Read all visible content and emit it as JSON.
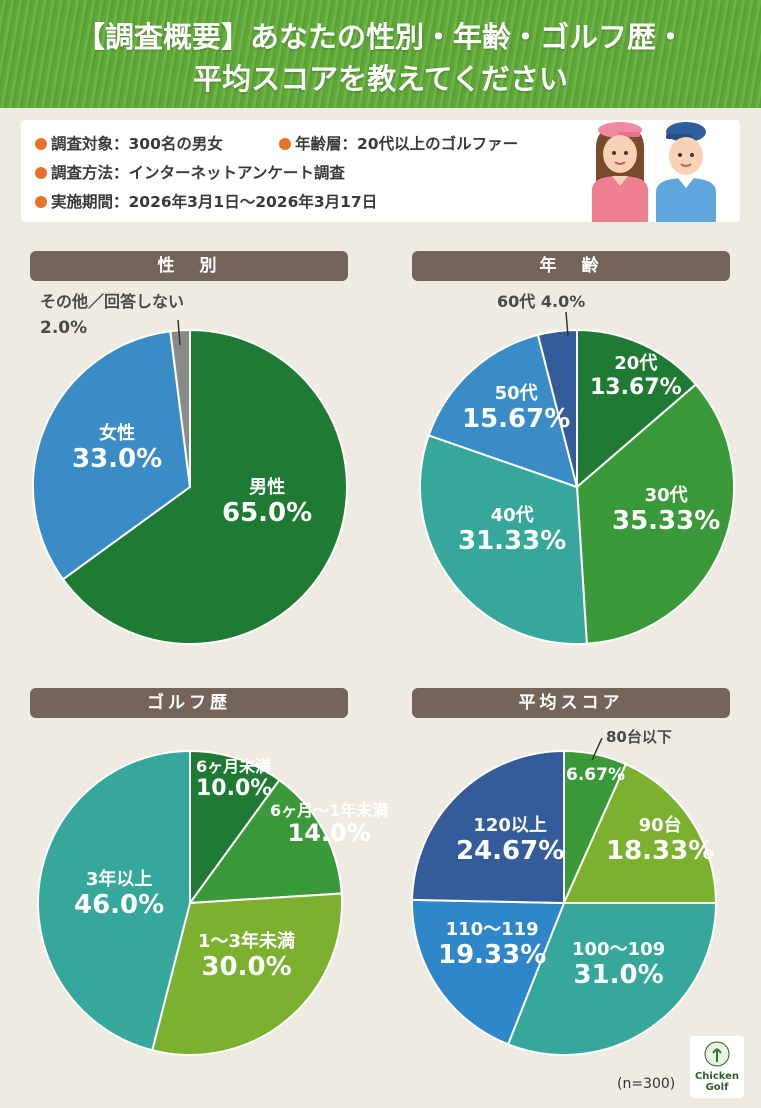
{
  "header": {
    "line1": "【調査概要】あなたの性別・年齢・ゴルフ歴・",
    "line2": "平均スコアを教えてください"
  },
  "survey": {
    "target": "調査対象：300名の男女",
    "age_range": "年齢層：20代以上のゴルファー",
    "method": "調査方法：インターネットアンケート調査",
    "period": "実施期間：2026年3月1日～2026年3月17日"
  },
  "sections": {
    "gender": "性　別",
    "age": "年　齢",
    "golf_history": "ゴルフ歴",
    "avg_score": "平均スコア"
  },
  "chart_data": [
    {
      "type": "pie",
      "title": "性　別",
      "slices": [
        {
          "label": "男性",
          "value": 65.0,
          "display": "65.0%",
          "color": "#1f7a34"
        },
        {
          "label": "女性",
          "value": 33.0,
          "display": "33.0%",
          "color": "#3a8cc6"
        },
        {
          "label": "その他／回答しない",
          "value": 2.0,
          "display": "2.0%",
          "color": "#8a8a8a"
        }
      ]
    },
    {
      "type": "pie",
      "title": "年　齢",
      "slices": [
        {
          "label": "20代",
          "value": 13.67,
          "display": "13.67%",
          "color": "#1f7a34"
        },
        {
          "label": "30代",
          "value": 35.33,
          "display": "35.33%",
          "color": "#3a9a3a"
        },
        {
          "label": "40代",
          "value": 31.33,
          "display": "31.33%",
          "color": "#35a79b"
        },
        {
          "label": "50代",
          "value": 15.67,
          "display": "15.67%",
          "color": "#3a8cc6"
        },
        {
          "label": "60代",
          "value": 4.0,
          "display": "4.0%",
          "color": "#345c9a"
        }
      ]
    },
    {
      "type": "pie",
      "title": "ゴルフ歴",
      "slices": [
        {
          "label": "6ヶ月未満",
          "value": 10.0,
          "display": "10.0%",
          "color": "#1f7a34"
        },
        {
          "label": "6ヶ月～1年未満",
          "value": 14.0,
          "display": "14.0%",
          "color": "#3a9a3a"
        },
        {
          "label": "1～3年未満",
          "value": 30.0,
          "display": "30.0%",
          "color": "#7cb02f"
        },
        {
          "label": "3年以上",
          "value": 46.0,
          "display": "46.0%",
          "color": "#35a79b"
        }
      ]
    },
    {
      "type": "pie",
      "title": "平均スコア",
      "slices": [
        {
          "label": "80台以下",
          "value": 6.67,
          "display": "6.67%",
          "color": "#3a9a3a"
        },
        {
          "label": "90台",
          "value": 18.33,
          "display": "18.33%",
          "color": "#7cb02f"
        },
        {
          "label": "100～109",
          "value": 31.0,
          "display": "31.0%",
          "color": "#35a79b"
        },
        {
          "label": "110～119",
          "value": 19.33,
          "display": "19.33%",
          "color": "#2f86c8"
        },
        {
          "label": "120以上",
          "value": 24.67,
          "display": "24.67%",
          "color": "#345c9a"
        }
      ]
    }
  ],
  "footer": {
    "n": "(n=300)",
    "logo_line1": "Chicken",
    "logo_line2": "Golf"
  }
}
